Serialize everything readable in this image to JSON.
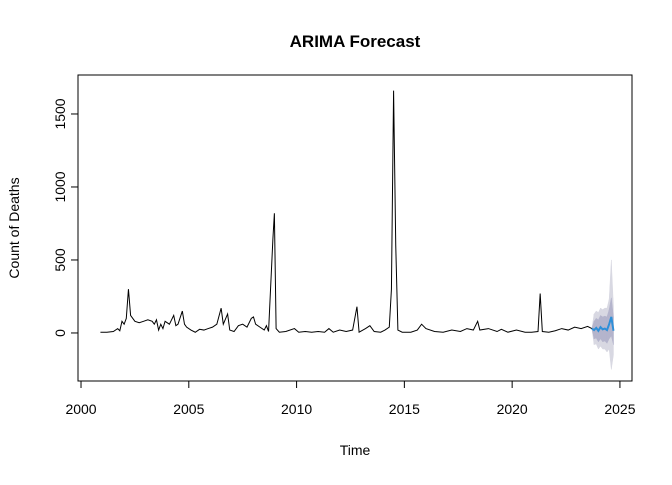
{
  "chart_data": {
    "type": "forecast",
    "title": "ARIMA Forecast",
    "x_label": "Time",
    "y_label": "Count of Deaths",
    "xlim": [
      1999.86,
      2025.56
    ],
    "xticks": [
      2000,
      2005,
      2010,
      2015,
      2020,
      2025
    ],
    "ylim": [
      -329,
      1767
    ],
    "yticks": [
      0,
      500,
      1000,
      1500
    ],
    "observed": {
      "color": "#000000",
      "x": [
        2000.9,
        2001.2,
        2001.5,
        2001.7,
        2001.8,
        2001.9,
        2002.0,
        2002.1,
        2002.2,
        2002.3,
        2002.5,
        2002.7,
        2002.9,
        2003.1,
        2003.3,
        2003.4,
        2003.5,
        2003.6,
        2003.7,
        2003.8,
        2003.9,
        2004.1,
        2004.2,
        2004.3,
        2004.4,
        2004.5,
        2004.7,
        2004.8,
        2004.9,
        2005.1,
        2005.3,
        2005.5,
        2005.7,
        2005.9,
        2006.1,
        2006.3,
        2006.5,
        2006.6,
        2006.8,
        2006.9,
        2007.1,
        2007.3,
        2007.5,
        2007.7,
        2007.9,
        2008.0,
        2008.1,
        2008.3,
        2008.5,
        2008.6,
        2008.7,
        2008.9,
        2008.97,
        2009.05,
        2009.2,
        2009.5,
        2009.9,
        2010.1,
        2010.4,
        2010.7,
        2011.0,
        2011.3,
        2011.5,
        2011.7,
        2012.0,
        2012.3,
        2012.6,
        2012.8,
        2012.9,
        2013.2,
        2013.4,
        2013.6,
        2013.9,
        2014.1,
        2014.3,
        2014.4,
        2014.5,
        2014.6,
        2014.7,
        2014.9,
        2015.3,
        2015.6,
        2015.8,
        2016.0,
        2016.4,
        2016.8,
        2017.2,
        2017.6,
        2017.9,
        2018.2,
        2018.4,
        2018.5,
        2018.9,
        2019.3,
        2019.5,
        2019.8,
        2020.2,
        2020.6,
        2020.9,
        2021.2,
        2021.3,
        2021.4,
        2021.7,
        2022.0,
        2022.3,
        2022.6,
        2022.9,
        2023.2,
        2023.5,
        2023.7
      ],
      "values": [
        5,
        5,
        10,
        30,
        15,
        80,
        60,
        100,
        300,
        120,
        80,
        70,
        80,
        90,
        80,
        60,
        90,
        20,
        60,
        30,
        80,
        60,
        90,
        120,
        50,
        60,
        150,
        60,
        40,
        20,
        5,
        25,
        20,
        30,
        40,
        60,
        170,
        60,
        130,
        20,
        10,
        50,
        60,
        40,
        100,
        110,
        60,
        40,
        20,
        50,
        10,
        640,
        820,
        30,
        5,
        10,
        30,
        5,
        10,
        5,
        10,
        5,
        30,
        5,
        20,
        10,
        20,
        180,
        5,
        30,
        50,
        10,
        5,
        20,
        40,
        300,
        1660,
        600,
        20,
        5,
        5,
        20,
        60,
        30,
        10,
        5,
        20,
        10,
        30,
        20,
        80,
        20,
        30,
        10,
        25,
        5,
        20,
        5,
        5,
        10,
        270,
        10,
        5,
        15,
        30,
        20,
        40,
        30,
        45,
        30
      ]
    },
    "forecast": {
      "color": "#2e8fd8",
      "band80_color": "#b4b4cc",
      "band95_color": "#d8d8e2",
      "x": [
        2023.7,
        2023.8,
        2023.9,
        2024.0,
        2024.1,
        2024.2,
        2024.3,
        2024.4,
        2024.5,
        2024.6,
        2024.7
      ],
      "values": [
        30,
        20,
        35,
        15,
        40,
        25,
        30,
        20,
        60,
        110,
        15
      ],
      "lower80": [
        30,
        -40,
        -35,
        -60,
        -40,
        -60,
        -55,
        -70,
        -40,
        -20,
        -80
      ],
      "upper80": [
        30,
        80,
        100,
        90,
        120,
        110,
        115,
        110,
        160,
        240,
        110
      ],
      "lower95": [
        30,
        -80,
        -75,
        -110,
        -90,
        -110,
        -110,
        -130,
        -110,
        -250,
        -150
      ],
      "upper95": [
        30,
        130,
        150,
        140,
        170,
        160,
        170,
        170,
        230,
        500,
        180
      ]
    }
  }
}
